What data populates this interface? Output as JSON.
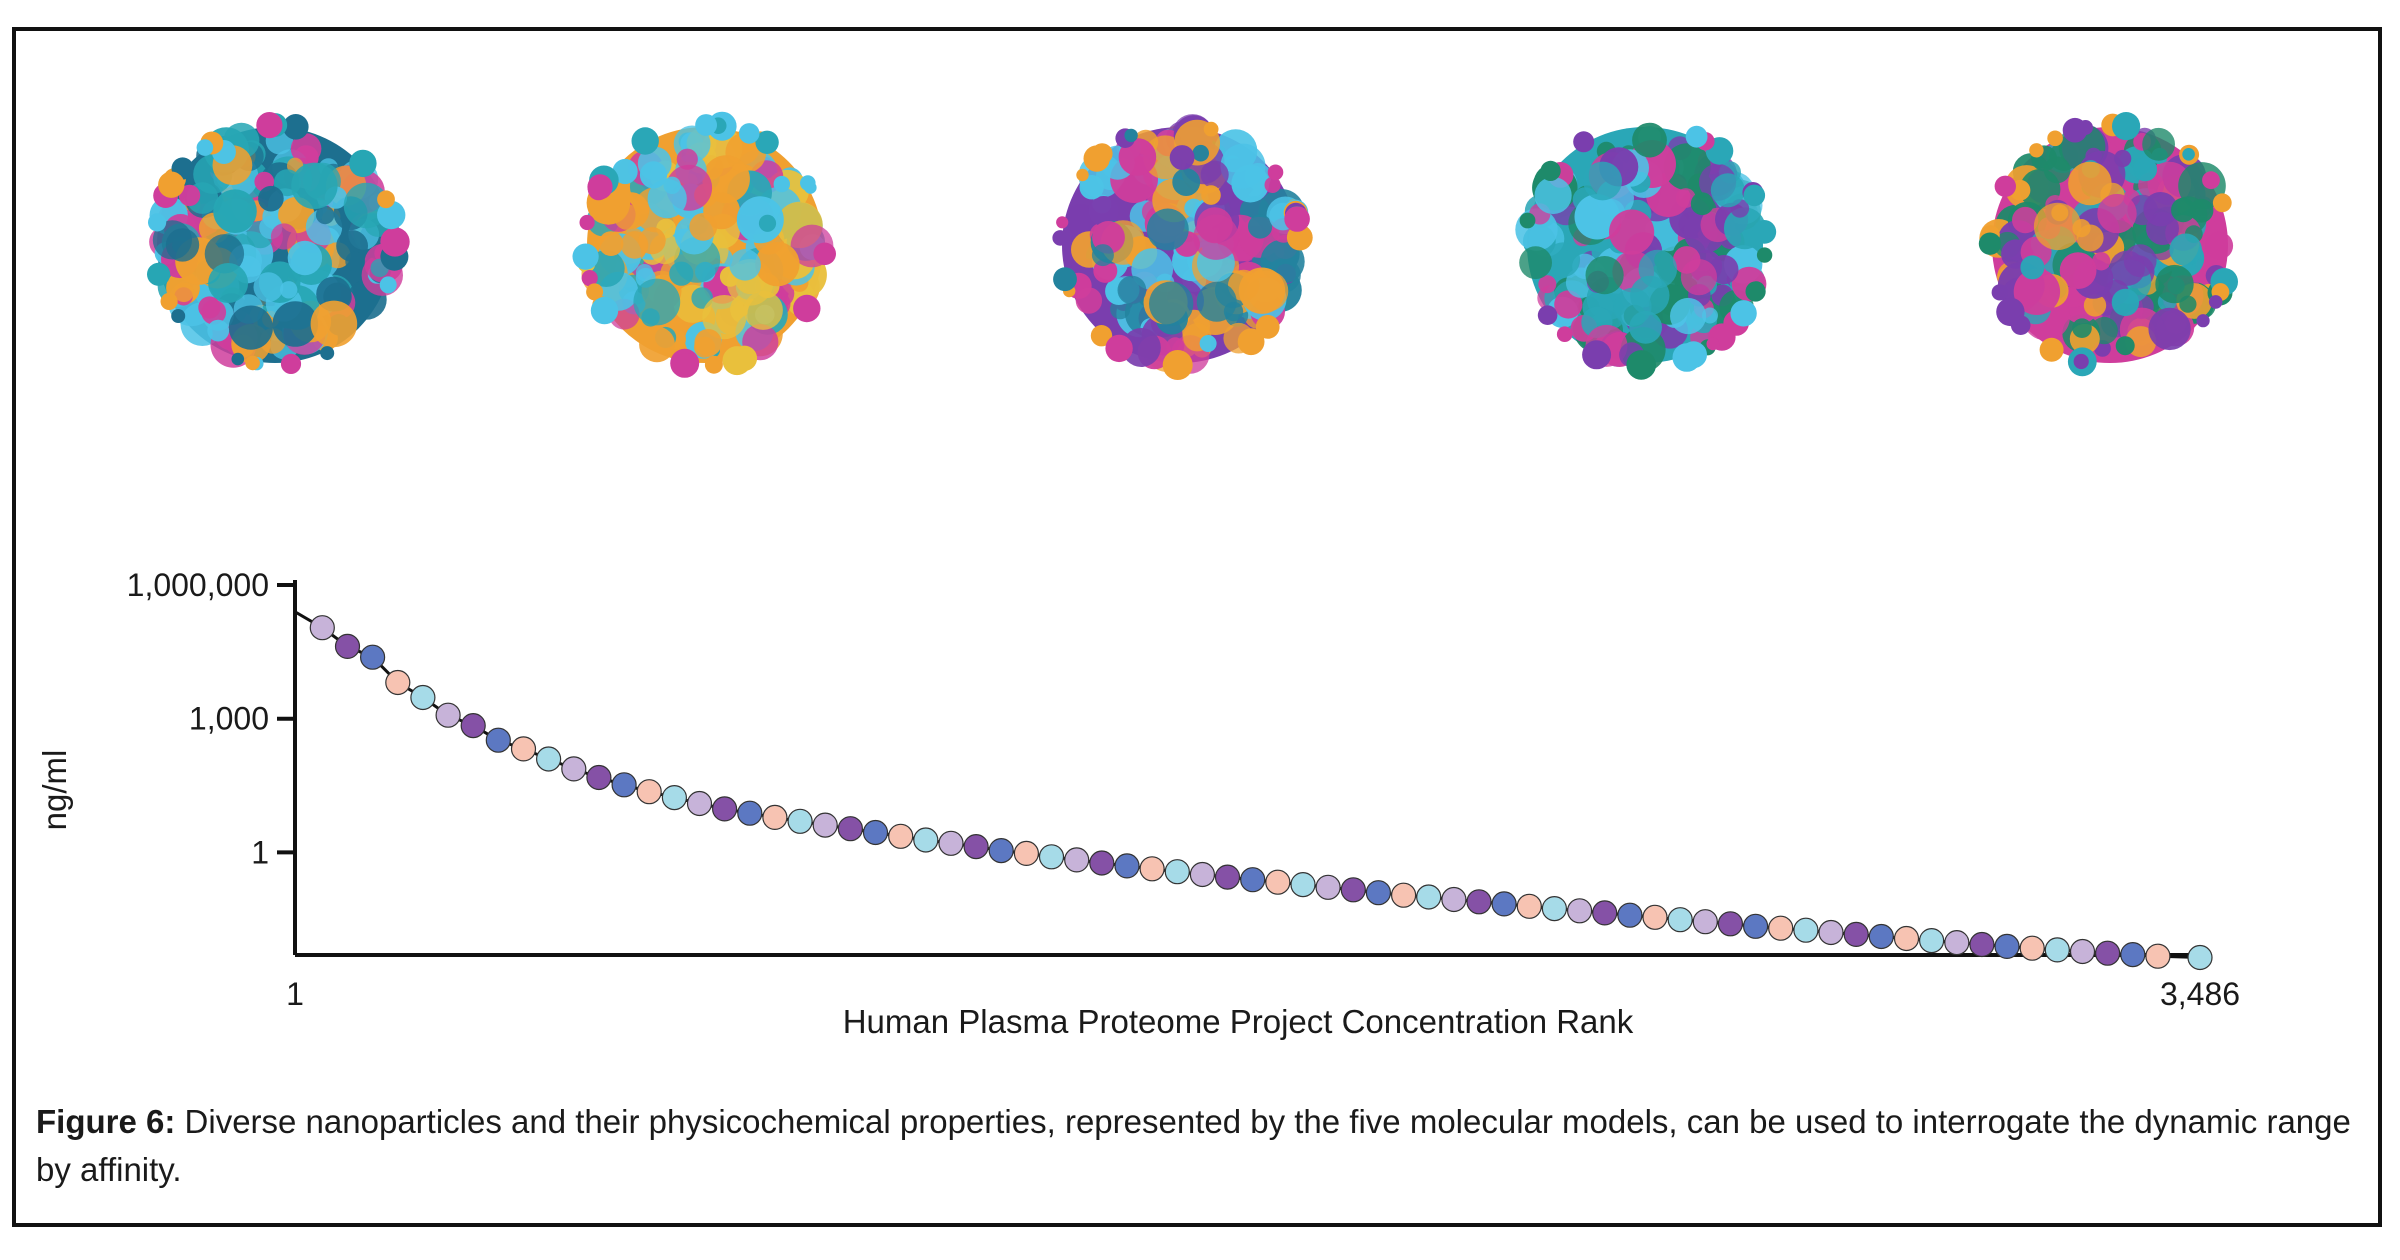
{
  "figure": {
    "particle_models": [
      {
        "name": "model-1",
        "colors": [
          "#1d6f8f",
          "#27a6b4",
          "#4cc3e6",
          "#cf3d9c",
          "#f0a030"
        ]
      },
      {
        "name": "model-2",
        "colors": [
          "#f0a030",
          "#e9c03c",
          "#cf3d9c",
          "#2aa7b7",
          "#4cc3e6"
        ]
      },
      {
        "name": "model-3",
        "colors": [
          "#7a3eae",
          "#cf3d9c",
          "#23839e",
          "#4cc3e6",
          "#f0a030"
        ]
      },
      {
        "name": "model-4",
        "colors": [
          "#2aa7b7",
          "#4cc3e6",
          "#1e8a6a",
          "#7a3eae",
          "#cf3d9c"
        ]
      },
      {
        "name": "model-5",
        "colors": [
          "#cf3d9c",
          "#1e8a6a",
          "#2aa7b7",
          "#7a3eae",
          "#f0a030"
        ]
      }
    ],
    "caption_lead": "Figure 6:",
    "caption_text": " Diverse nanoparticles and their physicochemical properties, represented by the five molecular models, can be used to interrogate the dynamic range by affinity."
  },
  "chart_data": {
    "type": "scatter",
    "xlabel": "Human Plasma Proteome Project Concentration Rank",
    "ylabel": "ng/ml",
    "x_tick_labels": [
      "1",
      "3,486"
    ],
    "x_ticks": [
      1,
      3486
    ],
    "y_tick_labels": [
      "1,000,000",
      "1,000",
      "1"
    ],
    "y_ticks": [
      1000000,
      1000,
      1
    ],
    "y_scale": "log",
    "xlim": [
      1,
      3486
    ],
    "ylim": [
      0.005,
      1000000
    ],
    "grid": false,
    "point_colors": [
      "#a6dbe8",
      "#c7b3d9",
      "#8551a6",
      "#5c78c2",
      "#f7c3b2"
    ],
    "series": [
      {
        "x": [
          1,
          51,
          97,
          143,
          189,
          235,
          281,
          327,
          373,
          419,
          465,
          511,
          557,
          603,
          649,
          695,
          741,
          787,
          833,
          879,
          925,
          971,
          1017,
          1063,
          1109,
          1155,
          1201,
          1247,
          1293,
          1339,
          1385,
          1431,
          1477,
          1523,
          1569,
          1615,
          1661,
          1707,
          1753,
          1799,
          1845,
          1891,
          1937,
          1983,
          2029,
          2075,
          2121,
          2167,
          2213,
          2259,
          2305,
          2351,
          2397,
          2443,
          2489,
          2535,
          2581,
          2627,
          2673,
          2719,
          2765,
          2811,
          2857,
          2903,
          2949,
          2995,
          3041,
          3087,
          3133,
          3179,
          3225,
          3271,
          3317,
          3363,
          3409,
          3486
        ],
        "y": [
          250000,
          110000,
          42000,
          24000,
          6500,
          3000,
          1200,
          700,
          330,
          210,
          125,
          75,
          48,
          33,
          23,
          17,
          12.5,
          9.5,
          7.6,
          6.1,
          5.0,
          4.1,
          3.4,
          2.8,
          2.3,
          1.9,
          1.6,
          1.35,
          1.1,
          0.95,
          0.8,
          0.68,
          0.58,
          0.5,
          0.43,
          0.37,
          0.32,
          0.28,
          0.245,
          0.215,
          0.19,
          0.165,
          0.145,
          0.125,
          0.11,
          0.1,
          0.088,
          0.078,
          0.07,
          0.062,
          0.055,
          0.049,
          0.044,
          0.039,
          0.035,
          0.031,
          0.028,
          0.025,
          0.022,
          0.02,
          0.018,
          0.016,
          0.0145,
          0.013,
          0.0117,
          0.0105,
          0.0095,
          0.0086,
          0.0078,
          0.0071,
          0.0065,
          0.006,
          0.0055,
          0.0051,
          0.0047,
          0.0044
        ]
      }
    ]
  }
}
